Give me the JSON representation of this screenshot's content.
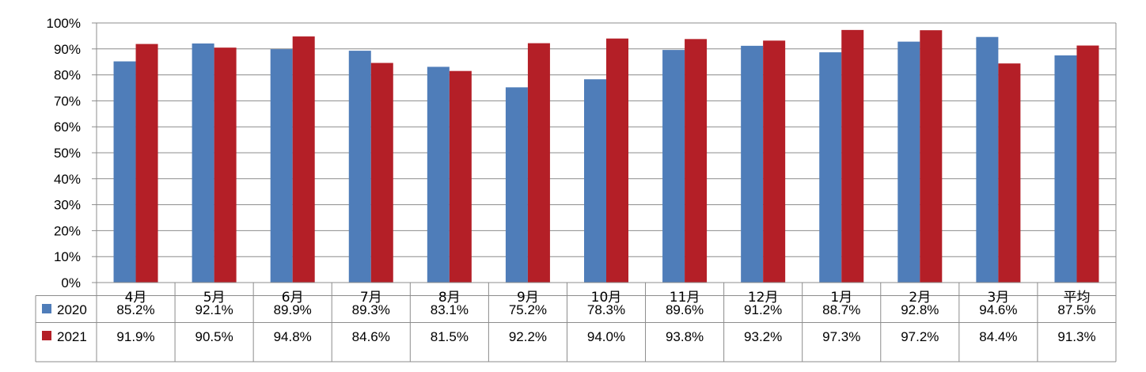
{
  "chart_data": {
    "type": "bar",
    "categories": [
      "4月",
      "5月",
      "6月",
      "7月",
      "8月",
      "9月",
      "10月",
      "11月",
      "12月",
      "1月",
      "2月",
      "3月",
      "平均"
    ],
    "series": [
      {
        "name": "2020",
        "color": "#4F7DB9",
        "values": [
          85.2,
          92.1,
          89.9,
          89.3,
          83.1,
          75.2,
          78.3,
          89.6,
          91.2,
          88.7,
          92.8,
          94.6,
          87.5
        ],
        "labels": [
          "85.2%",
          "92.1%",
          "89.9%",
          "89.3%",
          "83.1%",
          "75.2%",
          "78.3%",
          "89.6%",
          "91.2%",
          "88.7%",
          "92.8%",
          "94.6%",
          "87.5%"
        ]
      },
      {
        "name": "2021",
        "color": "#B41F27",
        "values": [
          91.9,
          90.5,
          94.8,
          84.6,
          81.5,
          92.2,
          94.0,
          93.8,
          93.2,
          97.3,
          97.2,
          84.4,
          91.3
        ],
        "labels": [
          "91.9%",
          "90.5%",
          "94.8%",
          "84.6%",
          "81.5%",
          "92.2%",
          "94.0%",
          "93.8%",
          "93.2%",
          "97.3%",
          "97.2%",
          "84.4%",
          "91.3%"
        ]
      }
    ],
    "yticks": [
      "0%",
      "10%",
      "20%",
      "30%",
      "40%",
      "50%",
      "60%",
      "70%",
      "80%",
      "90%",
      "100%"
    ],
    "ylim": [
      0,
      100
    ],
    "grid": true,
    "legend": "data-table"
  }
}
